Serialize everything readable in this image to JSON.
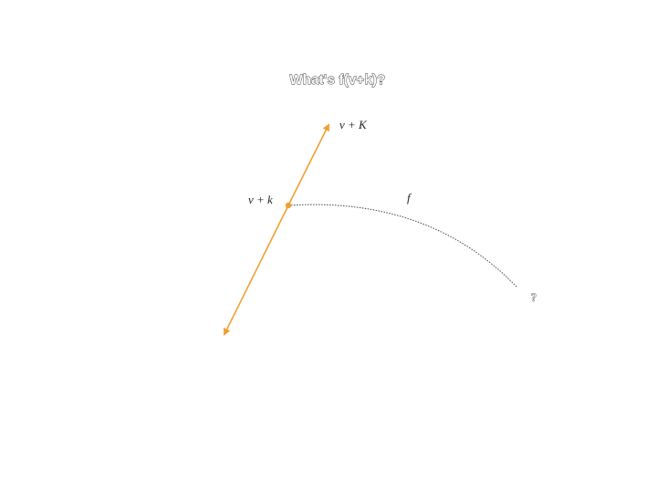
{
  "slide": {
    "title": "What's f(v+k)?"
  },
  "diagram": {
    "labels": {
      "direction_tip": "v + K",
      "base_point": "v + k",
      "function_name": "f",
      "unknown_result": "?"
    },
    "colors": {
      "vector_line": "#f0a030",
      "point": "#f0a030",
      "mapping_curve": "#444444",
      "text": "#222222"
    }
  }
}
